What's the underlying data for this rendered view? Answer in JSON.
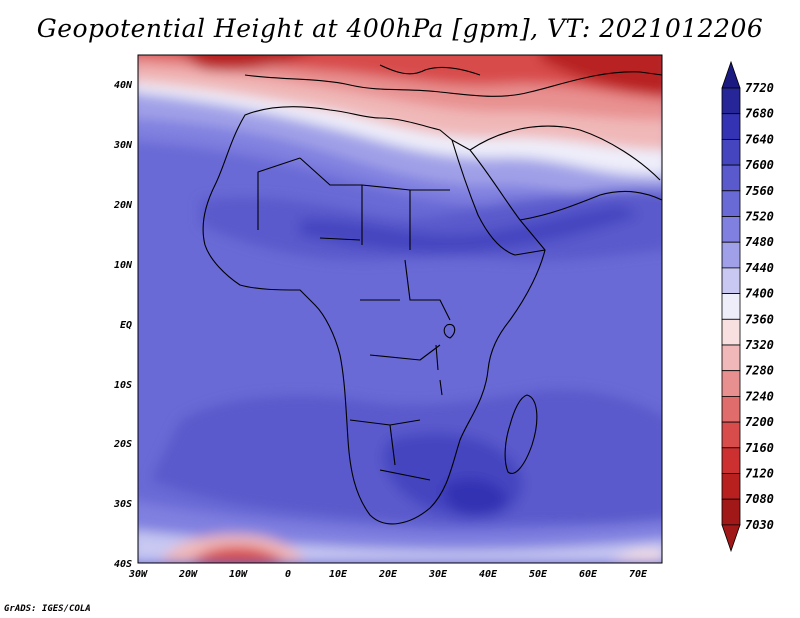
{
  "title": "Geopotential Height at 400hPa [gpm], VT: 2021012206",
  "credit": "GrADS: IGES/COLA",
  "axes": {
    "lat_labels": [
      "40N",
      "30N",
      "20N",
      "10N",
      "EQ",
      "10S",
      "20S",
      "30S",
      "40S"
    ],
    "lon_labels": [
      "30W",
      "20W",
      "10W",
      "0",
      "10E",
      "20E",
      "30E",
      "40E",
      "50E",
      "60E",
      "70E"
    ]
  },
  "colorbar": {
    "levels": [
      "7720",
      "7680",
      "7640",
      "7600",
      "7560",
      "7520",
      "7480",
      "7440",
      "7400",
      "7360",
      "7320",
      "7280",
      "7240",
      "7200",
      "7160",
      "7120",
      "7080",
      "7030"
    ],
    "colors": [
      "#1a1a80",
      "#262699",
      "#3333b3",
      "#4545c0",
      "#5a5acc",
      "#6a6ad6",
      "#8080e0",
      "#a0a0e8",
      "#c8c8f2",
      "#eeeefa",
      "#f8e0e0",
      "#f0b8b8",
      "#e89090",
      "#e06c6c",
      "#d84c4c",
      "#cc3030",
      "#b82020",
      "#a01818"
    ]
  }
}
